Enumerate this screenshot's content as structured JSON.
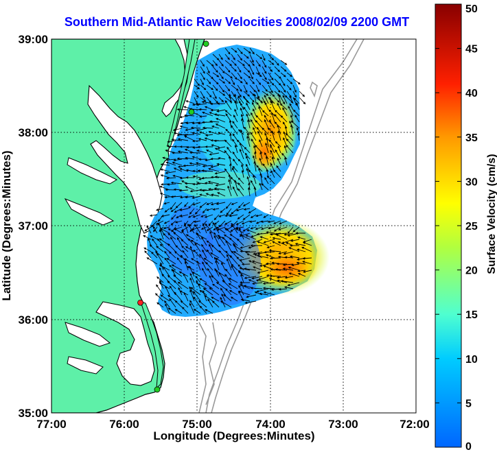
{
  "title": "Southern Mid-Atlantic Raw Velocities 2008/02/09 2200 GMT",
  "xlabel": "Longitude (Degrees:Minutes)",
  "ylabel": "Latitude (Degrees:Minutes)",
  "x_ticks": [
    "77:00",
    "76:00",
    "75:00",
    "74:00",
    "73:00",
    "72:00"
  ],
  "y_ticks": [
    "39:00",
    "38:00",
    "37:00",
    "36:00",
    "35:00"
  ],
  "colorbar": {
    "label": "Surface Velocity (cm/s)",
    "ticks": [
      "0",
      "5",
      "10",
      "15",
      "20",
      "25",
      "30",
      "35",
      "40",
      "45",
      "50"
    ],
    "min": 0,
    "max": 50
  },
  "colors": {
    "title": "#0000ff",
    "land": "#5ef0a8",
    "coastline": "#000000",
    "bathymetry": "#999999",
    "grid": "#000000",
    "site_active": "#22cc22",
    "site_inactive": "#ff2222"
  },
  "map": {
    "lon_range": [
      -77,
      -72
    ],
    "lat_range": [
      35,
      39
    ],
    "grid": "dotted",
    "stations": [
      {
        "lon": -74.88,
        "lat": 38.95,
        "status": "active"
      },
      {
        "lon": -75.08,
        "lat": 38.22,
        "status": "active"
      },
      {
        "lon": -75.78,
        "lat": 36.18,
        "status": "inactive"
      },
      {
        "lon": -75.55,
        "lat": 35.25,
        "status": "active"
      }
    ]
  }
}
